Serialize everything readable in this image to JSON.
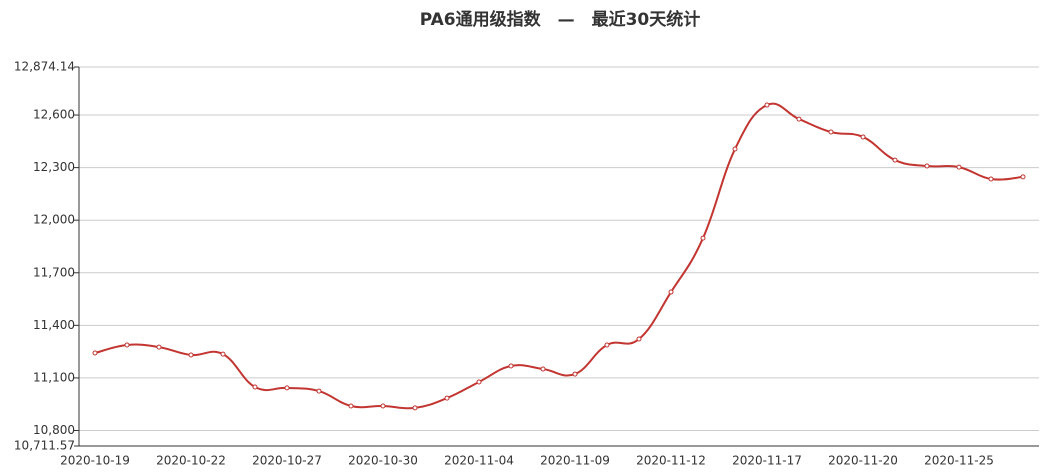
{
  "chart_data": {
    "type": "line",
    "title": "PA6通用级指数　—　最近30天统计",
    "categories": [
      "2020-10-19",
      null,
      null,
      "2020-10-22",
      null,
      null,
      "2020-10-27",
      null,
      null,
      "2020-10-30",
      null,
      null,
      "2020-11-04",
      null,
      null,
      "2020-11-09",
      null,
      null,
      "2020-11-12",
      null,
      null,
      "2020-11-17",
      null,
      null,
      "2020-11-20",
      null,
      null,
      "2020-11-25",
      null,
      null
    ],
    "series": [
      {
        "color": "#c23531",
        "values": [
          11242,
          11288,
          11276,
          11231,
          11236,
          11048,
          11043,
          11025,
          10940,
          10940,
          10929,
          10985,
          11077,
          11168,
          11151,
          11122,
          11288,
          11322,
          11590,
          11898,
          12406,
          12657,
          12577,
          12503,
          12475,
          12343,
          12309,
          12303,
          12235,
          12247
        ]
      }
    ],
    "ylim": [
      10711.57,
      12874.14
    ],
    "yticks": [
      {
        "value": 10711.57,
        "label": "10,711.57"
      },
      {
        "value": 10800,
        "label": "10,800"
      },
      {
        "value": 11100,
        "label": "11,100"
      },
      {
        "value": 11400,
        "label": "11,400"
      },
      {
        "value": 11700,
        "label": "11,700"
      },
      {
        "value": 12000,
        "label": "12,000"
      },
      {
        "value": 12300,
        "label": "12,300"
      },
      {
        "value": 12600,
        "label": "12,600"
      },
      {
        "value": 12874.14,
        "label": "12,874.14"
      }
    ],
    "grid": true
  }
}
